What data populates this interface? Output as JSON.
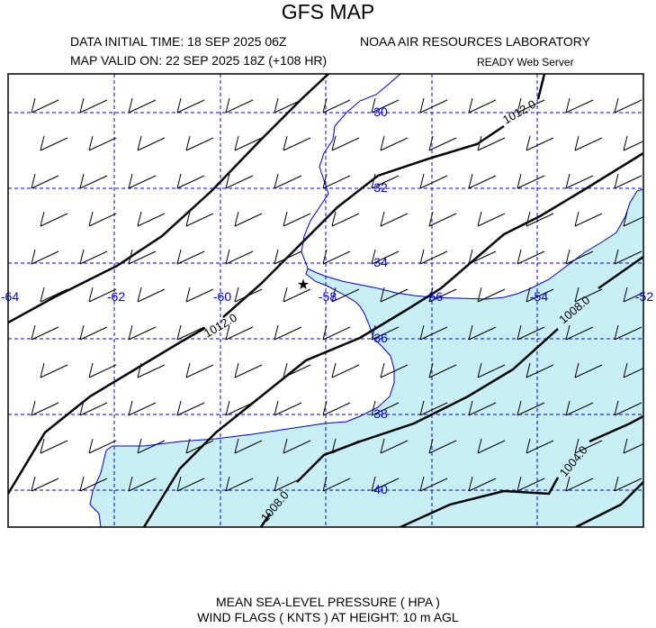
{
  "header": {
    "title": "GFS MAP",
    "init_time": "DATA INITIAL TIME: 18 SEP 2025 06Z",
    "valid_time": "MAP VALID ON: 22 SEP 2025 18Z (+108 HR)",
    "organization": "NOAA AIR RESOURCES LABORATORY",
    "server": "READY Web Server"
  },
  "map": {
    "lon_labels": [
      "-64",
      "-62",
      "-60",
      "-58",
      "-56",
      "-54",
      "-52"
    ],
    "lat_labels": [
      "30",
      "32",
      "34",
      "36",
      "38",
      "40"
    ],
    "isobar_labels": [
      "1012.0",
      "1012.0",
      "1008.0",
      "1008.0",
      "1004.0"
    ],
    "colors": {
      "sea": "#c8eff5",
      "grid": "#0000cc",
      "coast": "#0000cc",
      "isobar": "#000000"
    },
    "marker": "star-icon"
  },
  "footer": {
    "line1": "MEAN SEA-LEVEL PRESSURE ( HPA  )",
    "line2": "WIND FLAGS ( KNTS ) AT HEIGHT: 10 m AGL"
  }
}
